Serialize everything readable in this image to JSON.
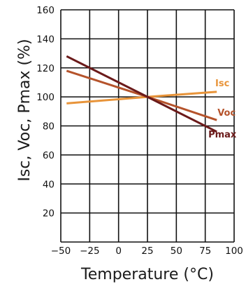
{
  "chart_data": {
    "type": "line",
    "xlabel": "Temperature (°C)",
    "ylabel": "Isc, Voc, Pmax (%)",
    "xlim": [
      -50,
      100
    ],
    "ylim": [
      0,
      160
    ],
    "x_ticks": [
      "-50",
      "-25",
      "0",
      "25",
      "50",
      "75",
      "100"
    ],
    "y_ticks": [
      "20",
      "40",
      "60",
      "80",
      "100",
      "120",
      "140",
      "160"
    ],
    "grid": true,
    "series": [
      {
        "name": "Isc",
        "color": "#e8943a",
        "x": [
          -45,
          25,
          85
        ],
        "y": [
          95.5,
          100,
          103.5
        ]
      },
      {
        "name": "Voc",
        "color": "#b5532b",
        "x": [
          -45,
          25,
          85
        ],
        "y": [
          118,
          100,
          84
        ]
      },
      {
        "name": "Pmax",
        "color": "#6b1a1a",
        "x": [
          -45,
          25,
          85
        ],
        "y": [
          128,
          100,
          76
        ]
      }
    ]
  }
}
